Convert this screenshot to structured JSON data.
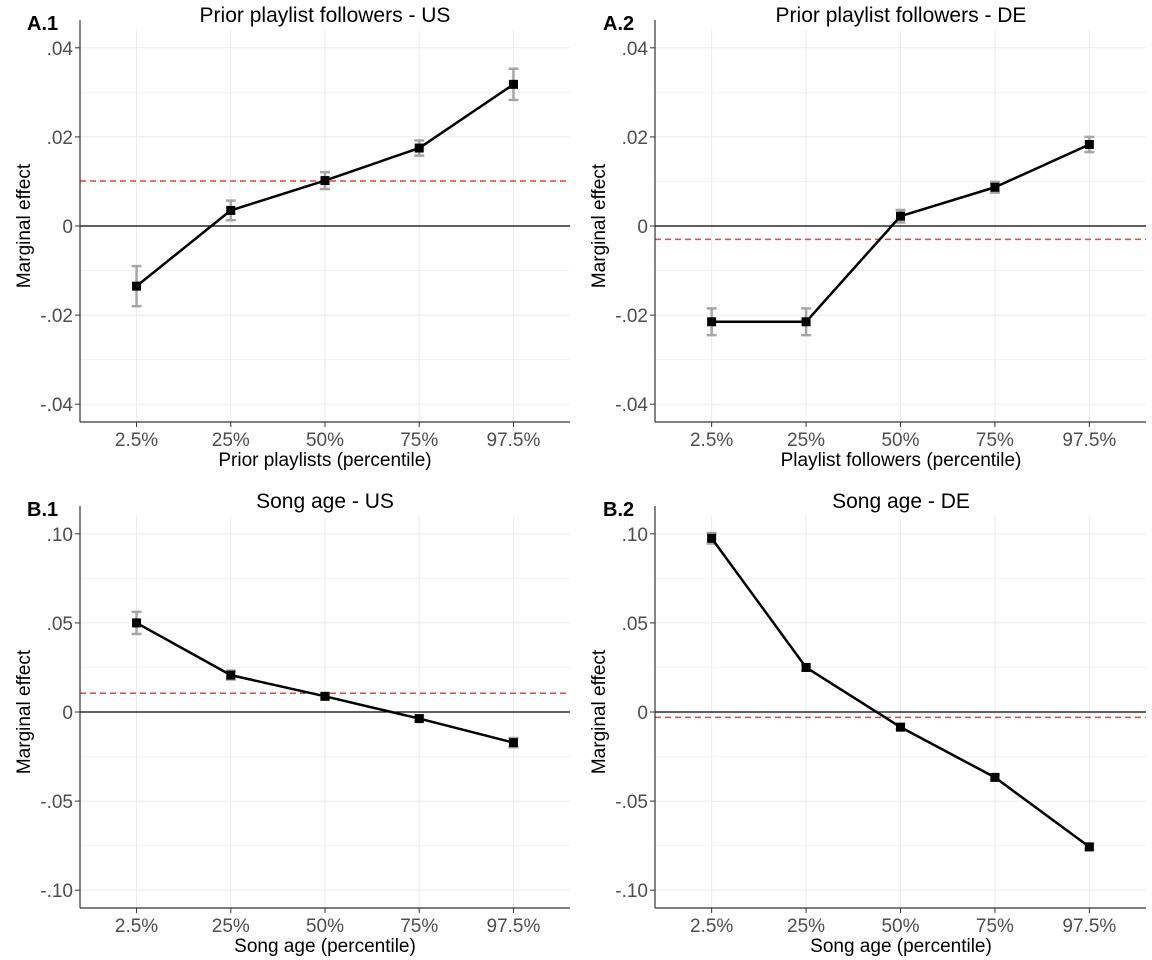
{
  "chart_data": [
    {
      "type": "line",
      "panel_label": "A.1",
      "title": "Prior playlist followers - US",
      "xlabel": "Prior playlists (percentile)",
      "ylabel": "Marginal effect",
      "categories": [
        "2.5%",
        "25%",
        "50%",
        "75%",
        "97.5%"
      ],
      "values": [
        -0.0135,
        0.0035,
        0.0102,
        0.0175,
        0.0318
      ],
      "ci_low": [
        -0.018,
        0.0013,
        0.0083,
        0.0158,
        0.0283
      ],
      "ci_high": [
        -0.009,
        0.0057,
        0.0121,
        0.0192,
        0.0353
      ],
      "reference_line": 0.0101,
      "ylim": [
        -0.044,
        0.044
      ],
      "yticks": [
        -0.04,
        -0.02,
        0,
        0.02,
        0.04
      ],
      "ytick_labels": [
        "-.04",
        "-.02",
        "0",
        ".02",
        ".04"
      ],
      "grid": true
    },
    {
      "type": "line",
      "panel_label": "A.2",
      "title": "Prior playlist followers - DE",
      "xlabel": "Playlist followers (percentile)",
      "ylabel": "Marginal effect",
      "categories": [
        "2.5%",
        "25%",
        "50%",
        "75%",
        "97.5%"
      ],
      "values": [
        -0.0215,
        -0.0215,
        0.0022,
        0.0087,
        0.0183
      ],
      "ci_low": [
        -0.0245,
        -0.0245,
        0.0008,
        0.0075,
        0.0166
      ],
      "ci_high": [
        -0.0185,
        -0.0185,
        0.0036,
        0.0099,
        0.02
      ],
      "reference_line": -0.003,
      "ylim": [
        -0.044,
        0.044
      ],
      "yticks": [
        -0.04,
        -0.02,
        0,
        0.02,
        0.04
      ],
      "ytick_labels": [
        "-.04",
        "-.02",
        "0",
        ".02",
        ".04"
      ],
      "grid": true
    },
    {
      "type": "line",
      "panel_label": "B.1",
      "title": "Song age - US",
      "xlabel": "Song age (percentile)",
      "ylabel": "Marginal effect",
      "categories": [
        "2.5%",
        "25%",
        "50%",
        "75%",
        "97.5%"
      ],
      "values": [
        0.05,
        0.0207,
        0.0088,
        -0.0037,
        -0.0172
      ],
      "ci_low": [
        0.0438,
        0.0182,
        0.0075,
        -0.0052,
        -0.0198
      ],
      "ci_high": [
        0.0562,
        0.0232,
        0.0101,
        -0.0022,
        -0.0146
      ],
      "reference_line": 0.0105,
      "ylim": [
        -0.11,
        0.11
      ],
      "yticks": [
        -0.1,
        -0.05,
        0,
        0.05,
        0.1
      ],
      "ytick_labels": [
        "-.10",
        "-.05",
        "0",
        ".05",
        ".10"
      ],
      "grid": true
    },
    {
      "type": "line",
      "panel_label": "B.2",
      "title": "Song age - DE",
      "xlabel": "Song age (percentile)",
      "ylabel": "Marginal effect",
      "categories": [
        "2.5%",
        "25%",
        "50%",
        "75%",
        "97.5%"
      ],
      "values": [
        0.0975,
        0.025,
        -0.0085,
        -0.0367,
        -0.0757
      ],
      "ci_low": [
        0.0945,
        0.0234,
        -0.0098,
        -0.0382,
        -0.0772
      ],
      "ci_high": [
        0.1005,
        0.0266,
        -0.0072,
        -0.0352,
        -0.0742
      ],
      "reference_line": -0.003,
      "ylim": [
        -0.11,
        0.11
      ],
      "yticks": [
        -0.1,
        -0.05,
        0,
        0.05,
        0.1
      ],
      "ytick_labels": [
        "-.10",
        "-.05",
        "0",
        ".05",
        ".10"
      ],
      "grid": true
    }
  ],
  "colors": {
    "line": "#000000",
    "marker": "#000000",
    "error_bar": "#a6a6a6",
    "reference_line": "#e8453c",
    "zero_line": "#000000",
    "grid_major": "#ebebeb",
    "grid_minor": "#f3f3f3",
    "axis": "#333333"
  }
}
